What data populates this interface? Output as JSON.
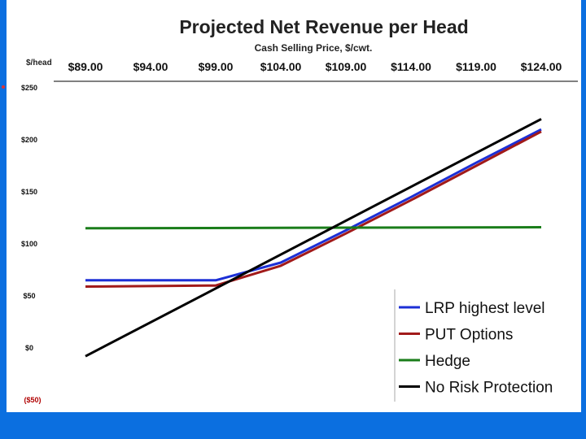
{
  "chart_data": {
    "type": "line",
    "title": "Projected Net Revenue per Head",
    "xlabel": "Cash Selling Price, $/cwt.",
    "ylabel": "$/head",
    "categories": [
      "$89.00",
      "$94.00",
      "$99.00",
      "$104.00",
      "$109.00",
      "$114.00",
      "$119.00",
      "$124.00"
    ],
    "x": [
      89,
      94,
      99,
      104,
      109,
      114,
      119,
      124
    ],
    "y_ticks": [
      250,
      200,
      150,
      100,
      50,
      0,
      -50
    ],
    "y_tick_labels": [
      "$250",
      "$200",
      "$150",
      "$100",
      "$50",
      "$0",
      "($50)"
    ],
    "ylim": [
      -50,
      250
    ],
    "xlim": [
      89,
      124
    ],
    "grid": false,
    "legend_position": "bottom-right",
    "series": [
      {
        "name": "LRP highest level",
        "color": "#1c2fd6",
        "x": [
          89,
          99,
          104,
          109,
          114,
          119,
          124
        ],
        "values": [
          65,
          65,
          82,
          113,
          145,
          178,
          210
        ]
      },
      {
        "name": "PUT Options",
        "color": "#a11a1a",
        "x": [
          89,
          99,
          104,
          109,
          114,
          119,
          124
        ],
        "values": [
          59,
          60,
          79,
          110,
          142,
          175,
          208
        ]
      },
      {
        "name": "Hedge",
        "color": "#1a7d1a",
        "x": [
          89,
          124
        ],
        "values": [
          115,
          116
        ]
      },
      {
        "name": "No Risk Protection",
        "color": "#000000",
        "x": [
          89,
          124
        ],
        "values": [
          -8,
          220
        ]
      }
    ]
  }
}
